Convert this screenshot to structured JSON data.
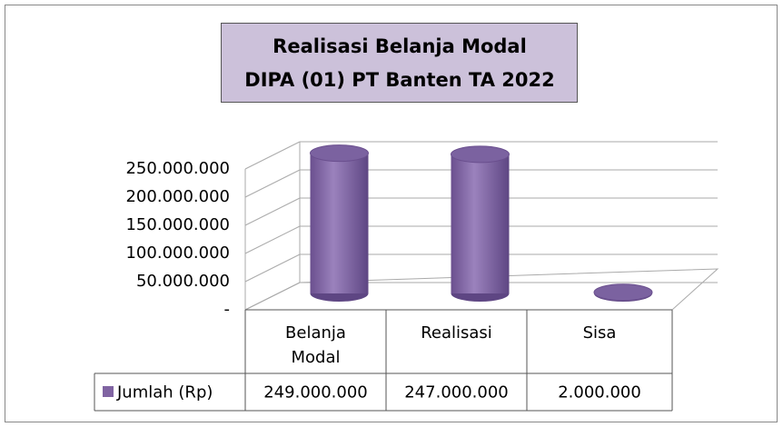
{
  "chart_data": {
    "type": "bar3d",
    "title": "Realisasi Belanja Modal",
    "subtitle": "DIPA (01) PT Banten TA 2022",
    "categories": [
      "Belanja Modal",
      "Realisasi",
      "Sisa"
    ],
    "series": [
      {
        "name": "Jumlah (Rp)",
        "color": "#8064a2",
        "values": [
          249000000,
          247000000,
          2000000
        ],
        "value_labels": [
          "249.000.000",
          "247.000.000",
          "2.000.000"
        ]
      }
    ],
    "ylim": [
      0,
      250000000
    ],
    "yticks": [
      {
        "value": 0,
        "label": "-"
      },
      {
        "value": 50000000,
        "label": "50.000.000"
      },
      {
        "value": 100000000,
        "label": "100.000.000"
      },
      {
        "value": 150000000,
        "label": "150.000.000"
      },
      {
        "value": 200000000,
        "label": "200.000.000"
      },
      {
        "value": 250000000,
        "label": "250.000.000"
      }
    ],
    "grid": true
  }
}
